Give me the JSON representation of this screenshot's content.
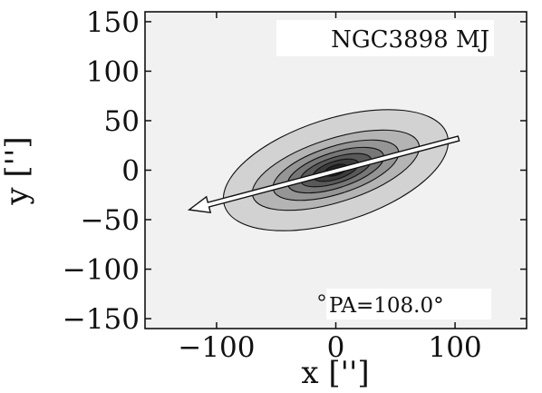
{
  "chart_data": {
    "type": "contour",
    "title": "",
    "xlabel": "x ['']",
    "ylabel": "y ['']",
    "xlim": [
      -160,
      160
    ],
    "ylim": [
      -160,
      160
    ],
    "xticks": [
      -100,
      0,
      100
    ],
    "xtick_labels": [
      "−100",
      "0",
      "100"
    ],
    "yticks": [
      -150,
      -100,
      -50,
      0,
      50,
      100,
      150
    ],
    "ytick_labels": [
      "−150",
      "−100",
      "−50",
      "0",
      "50",
      "100",
      "150"
    ],
    "grid": false,
    "galaxy_label": "NGC3898 MJ",
    "pa_label": "PA=108.0°",
    "position_angle_deg": 108.0,
    "center": [
      0,
      0
    ],
    "contour_levels": [
      {
        "level": 1,
        "a": 98,
        "b": 52,
        "fill": "#d2d2d2"
      },
      {
        "level": 2,
        "a": 73,
        "b": 32,
        "fill": "#b4b4b4"
      },
      {
        "level": 3,
        "a": 55,
        "b": 24,
        "fill": "#959595"
      },
      {
        "level": 4,
        "a": 42,
        "b": 18,
        "fill": "#777777"
      },
      {
        "level": 5,
        "a": 31,
        "b": 13,
        "fill": "#595959"
      },
      {
        "level": 6,
        "a": 20,
        "b": 9,
        "fill": "#3d3d3d"
      },
      {
        "level": 7,
        "a": 10,
        "b": 5,
        "fill": "#252525"
      }
    ],
    "pa_arrow": {
      "x1": 103,
      "y1": 32,
      "x2": -123,
      "y2": -40
    },
    "background_fill": "#f1f1f1"
  }
}
